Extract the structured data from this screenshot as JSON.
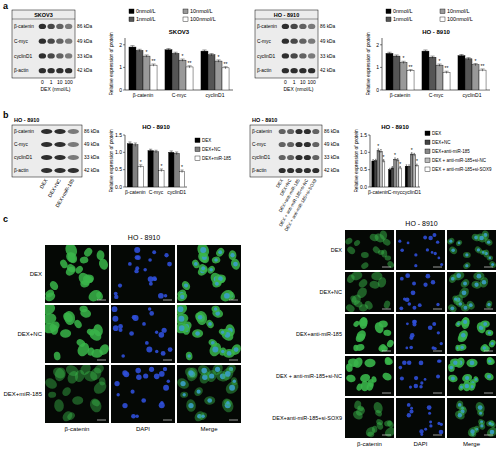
{
  "panel_labels": [
    "a",
    "b",
    "c"
  ],
  "chart_data": [
    {
      "type": "bar",
      "title": "SKOV3",
      "y_label": "Relative expression of protein",
      "categories": [
        "β-catenin",
        "C-myc",
        "cyclinD1"
      ],
      "series": [
        {
          "name": "0nmol/L",
          "color": "#000000",
          "values": [
            1.9,
            1.78,
            1.72
          ],
          "errors": [
            0.06,
            0.05,
            0.05
          ]
        },
        {
          "name": "1nmol/L",
          "color": "#555555",
          "values": [
            1.75,
            1.62,
            1.56
          ],
          "errors": [
            0.05,
            0.05,
            0.05
          ]
        },
        {
          "name": "10nmol/L",
          "color": "#999999",
          "values": [
            1.5,
            1.32,
            1.28
          ],
          "errors": [
            0.05,
            0.05,
            0.05
          ],
          "significance": [
            "*",
            "*",
            "*"
          ]
        },
        {
          "name": "100nmol/L",
          "color": "#ffffff",
          "values": [
            1.1,
            1.02,
            0.98
          ],
          "errors": [
            0.05,
            0.05,
            0.05
          ],
          "significance": [
            "**",
            "**",
            "**"
          ]
        }
      ],
      "ylim": [
        0,
        2.3
      ],
      "yticks": [
        0,
        1,
        2
      ],
      "grid": false,
      "legend": "top"
    },
    {
      "type": "bar",
      "title": "HO - 8910",
      "y_label": "Relative expression of protein",
      "categories": [
        "β-catenin",
        "C-myc",
        "cyclinD1"
      ],
      "series": [
        {
          "name": "0nmol/L",
          "color": "#000000",
          "values": [
            1.62,
            1.72,
            1.52
          ],
          "errors": [
            0.05,
            0.05,
            0.05
          ]
        },
        {
          "name": "1nmol/L",
          "color": "#555555",
          "values": [
            1.5,
            1.45,
            1.38
          ],
          "errors": [
            0.05,
            0.05,
            0.05
          ]
        },
        {
          "name": "10nmol/L",
          "color": "#999999",
          "values": [
            1.22,
            1.1,
            1.12
          ],
          "errors": [
            0.05,
            0.05,
            0.05
          ],
          "significance": [
            "*",
            "*",
            "*"
          ]
        },
        {
          "name": "100nmol/L",
          "color": "#ffffff",
          "values": [
            0.85,
            0.78,
            0.88
          ],
          "errors": [
            0.05,
            0.05,
            0.05
          ],
          "significance": [
            "**",
            "**",
            "**"
          ]
        }
      ],
      "ylim": [
        0,
        2.3
      ],
      "yticks": [
        0,
        1,
        2
      ],
      "grid": false,
      "legend": "top"
    },
    {
      "type": "bar",
      "title": "HO - 8910",
      "y_label": "Relative expression of protein",
      "categories": [
        "β-catenin",
        "C-myc",
        "cyclinD1"
      ],
      "series": [
        {
          "name": "DEX",
          "color": "#000000",
          "values": [
            1.25,
            1.05,
            1.0
          ],
          "errors": [
            0.05,
            0.04,
            0.04
          ]
        },
        {
          "name": "DEX+NC",
          "color": "#808080",
          "values": [
            1.22,
            1.02,
            0.97
          ],
          "errors": [
            0.05,
            0.04,
            0.04
          ]
        },
        {
          "name": "DEX+miR-185",
          "color": "#ffffff",
          "values": [
            0.6,
            0.48,
            0.45
          ],
          "errors": [
            0.04,
            0.04,
            0.04
          ],
          "significance": [
            "*",
            "*",
            "*"
          ]
        }
      ],
      "ylim": [
        0,
        1.5
      ],
      "yticks": [
        {
          "value": 0,
          "label": "0.0"
        },
        {
          "value": 0.5,
          "label": "0.5"
        },
        {
          "value": 1,
          "label": "1.0"
        },
        {
          "value": 1.5,
          "label": "1.5"
        }
      ],
      "grid": false,
      "legend": "right"
    },
    {
      "type": "bar",
      "title": "HO - 8910",
      "y_label": "Relative expression of protein",
      "categories": [
        "β-catenin",
        "C-myc",
        "cyclinD1"
      ],
      "series": [
        {
          "name": "DEX",
          "color": "#000000",
          "values": [
            0.75,
            0.5,
            0.6
          ],
          "errors": [
            0.04,
            0.04,
            0.04
          ]
        },
        {
          "name": "DEX+NC",
          "color": "#444444",
          "values": [
            0.76,
            0.55,
            0.6
          ],
          "errors": [
            0.04,
            0.04,
            0.04
          ]
        },
        {
          "name": "DEX+anti-miR-185",
          "color": "#888888",
          "values": [
            1.05,
            0.8,
            0.95
          ],
          "errors": [
            0.05,
            0.04,
            0.04
          ],
          "significance": [
            "*",
            "*",
            "*"
          ]
        },
        {
          "name": "DEX + anti-miR-185+si-NC",
          "color": "#bbbbbb",
          "values": [
            1.03,
            0.78,
            0.93
          ],
          "errors": [
            0.05,
            0.04,
            0.04
          ]
        },
        {
          "name": "DEX + anti-miR-185+si-SOX9",
          "color": "#ffffff",
          "values": [
            0.75,
            0.55,
            0.62
          ],
          "errors": [
            0.04,
            0.04,
            0.04
          ],
          "significance": [
            "*",
            "*",
            "*"
          ]
        }
      ],
      "ylim": [
        0,
        1.5
      ],
      "yticks": [
        {
          "value": 0,
          "label": "0.0"
        },
        {
          "value": 0.5,
          "label": "0.5"
        },
        {
          "value": 1,
          "label": "1.0"
        },
        {
          "value": 1.5,
          "label": "1.5"
        }
      ],
      "grid": false,
      "legend": "right"
    }
  ],
  "blots": [
    {
      "title": "SKOV3",
      "rows": [
        "β-catenin",
        "C-myc",
        "cyclinD1",
        "β-actin"
      ],
      "kda": [
        "86 kDa",
        "49 kDa",
        "33 kDa",
        "42 kDa"
      ],
      "lanes": [
        "0",
        "1",
        "10",
        "100"
      ],
      "x_label": "DEX (nmol/L)"
    },
    {
      "title": "HO - 8910",
      "rows": [
        "β-catenin",
        "C-myc",
        "cyclinD1",
        "β-actin"
      ],
      "kda": [
        "86 kDa",
        "49 kDa",
        "33 kDa",
        "42 kDa"
      ],
      "lanes": [
        "0",
        "1",
        "10",
        "100"
      ],
      "x_label": "DEX (nmol/L)"
    },
    {
      "title": "HO - 8910",
      "rows": [
        "β-catenin",
        "C-myc",
        "cyclinD1",
        "β-actin"
      ],
      "kda": [
        "86 kDa",
        "49 kDa",
        "33 kDa",
        "42 kDa"
      ],
      "lanes": [
        "DEX",
        "DEX+NC",
        "DEX+miR-185"
      ]
    },
    {
      "title": "HO - 8910",
      "rows": [
        "β-catenin",
        "C-myc",
        "cyclinD1",
        "β-actin"
      ],
      "kda": [
        "86 kDa",
        "49 kDa",
        "33 kDa",
        "42 kDa"
      ],
      "lanes": [
        "DEX",
        "DEX+NC",
        "DEX+anti-miR-185",
        "DEX + anti-miR-185+si-NC",
        "DEX + anti-miR-185+si-SOX9"
      ]
    }
  ],
  "micrographs": [
    {
      "title": "HO - 8910",
      "rows": [
        "DEX",
        "DEX+NC",
        "DEX+miR-185"
      ],
      "columns": [
        "β-catenin",
        "DAPI",
        "Merge"
      ]
    },
    {
      "title": "HO - 8910",
      "rows": [
        "DEX",
        "DEX+NC",
        "DEX+anti-miR-185",
        "DEX + anti-miR-185+si-NC",
        "DEX+anti-miR-185+si-SOX9"
      ],
      "columns": [
        "β-catenin",
        "DAPI",
        "Merge"
      ]
    }
  ]
}
